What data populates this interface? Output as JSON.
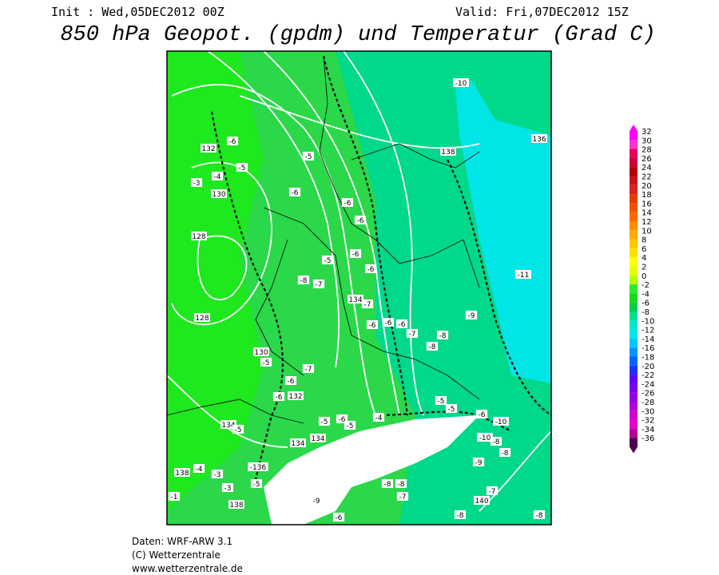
{
  "header": {
    "init": "Init : Wed,05DEC2012 00Z",
    "valid": "Valid: Fri,07DEC2012 15Z",
    "title": "850 hPa Geopot. (gpdm) und Temperatur (Grad C)"
  },
  "colorbar": {
    "values": [
      32,
      30,
      28,
      26,
      24,
      22,
      20,
      18,
      16,
      14,
      12,
      10,
      8,
      6,
      4,
      2,
      0,
      -2,
      -4,
      -6,
      -8,
      -10,
      -12,
      -14,
      -16,
      -18,
      -20,
      -22,
      -24,
      -26,
      -28,
      -30,
      -32,
      -34,
      -36
    ],
    "colors": [
      "#ff00ff",
      "#ff33cc",
      "#e6005c",
      "#cc0033",
      "#b30000",
      "#c81414",
      "#dd2020",
      "#e63c00",
      "#f05000",
      "#ff6600",
      "#ff8c00",
      "#ffaa00",
      "#ffc800",
      "#ffe100",
      "#ffff00",
      "#e6ff00",
      "#b4ff00",
      "#32e632",
      "#14dc14",
      "#00d246",
      "#00e08c",
      "#00e6c8",
      "#00e6f0",
      "#00c8ff",
      "#0096ff",
      "#0064ff",
      "#1e32ff",
      "#5a00ff",
      "#7800f0",
      "#9600e6",
      "#b400dc",
      "#d200d2",
      "#e600c8",
      "#b4009b",
      "#500050"
    ]
  },
  "map": {
    "labels": [
      "-10",
      "138",
      "136",
      "132",
      "-6",
      "-5",
      "-5",
      "-4",
      "-3",
      "130",
      "-6",
      "-6",
      "-6",
      "128",
      "-5",
      "-6",
      "-6",
      "-8",
      "-7",
      "-11",
      "134",
      "-7",
      "-9",
      "-6",
      "-6",
      "-6",
      "-7",
      "-8",
      "-8",
      "128",
      "130",
      "-5",
      "-6",
      "-7",
      "-6",
      "132",
      "-5",
      "-5",
      "-6",
      "-10",
      "-10",
      "-8",
      "134",
      "-5",
      "134",
      "134",
      "-5",
      "-6",
      "-5",
      "-4",
      "-9",
      "-8",
      "138",
      "-4",
      "-3",
      "-136",
      "-5",
      "-3",
      "-8",
      "-8",
      "-7",
      "-7",
      "140",
      "138",
      "-9",
      "-6",
      "-8",
      "-8",
      "-1"
    ]
  },
  "footer": {
    "lines": [
      "Daten: WRF-ARW 3.1",
      "(C) Wetterzentrale",
      "www.wetterzentrale.de"
    ]
  }
}
